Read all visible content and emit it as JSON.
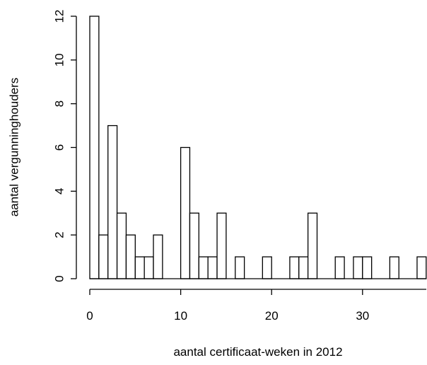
{
  "chart_data": {
    "type": "bar",
    "title": "",
    "xlabel": "aantal certificaat-weken in 2012",
    "ylabel": "aantal vergunninghouders",
    "xlim": [
      0,
      37
    ],
    "ylim": [
      0,
      12
    ],
    "x_ticks": [
      0,
      10,
      20,
      30
    ],
    "y_ticks": [
      0,
      2,
      4,
      6,
      8,
      10,
      12
    ],
    "bin_width": 1,
    "bins": [
      {
        "start": 0,
        "count": 12
      },
      {
        "start": 1,
        "count": 2
      },
      {
        "start": 2,
        "count": 7
      },
      {
        "start": 3,
        "count": 3
      },
      {
        "start": 4,
        "count": 2
      },
      {
        "start": 5,
        "count": 1
      },
      {
        "start": 6,
        "count": 1
      },
      {
        "start": 7,
        "count": 2
      },
      {
        "start": 10,
        "count": 6
      },
      {
        "start": 11,
        "count": 3
      },
      {
        "start": 12,
        "count": 1
      },
      {
        "start": 13,
        "count": 1
      },
      {
        "start": 14,
        "count": 3
      },
      {
        "start": 16,
        "count": 1
      },
      {
        "start": 19,
        "count": 1
      },
      {
        "start": 22,
        "count": 1
      },
      {
        "start": 23,
        "count": 1
      },
      {
        "start": 24,
        "count": 3
      },
      {
        "start": 27,
        "count": 1
      },
      {
        "start": 29,
        "count": 1
      },
      {
        "start": 30,
        "count": 1
      },
      {
        "start": 33,
        "count": 1
      },
      {
        "start": 36,
        "count": 1
      }
    ]
  }
}
